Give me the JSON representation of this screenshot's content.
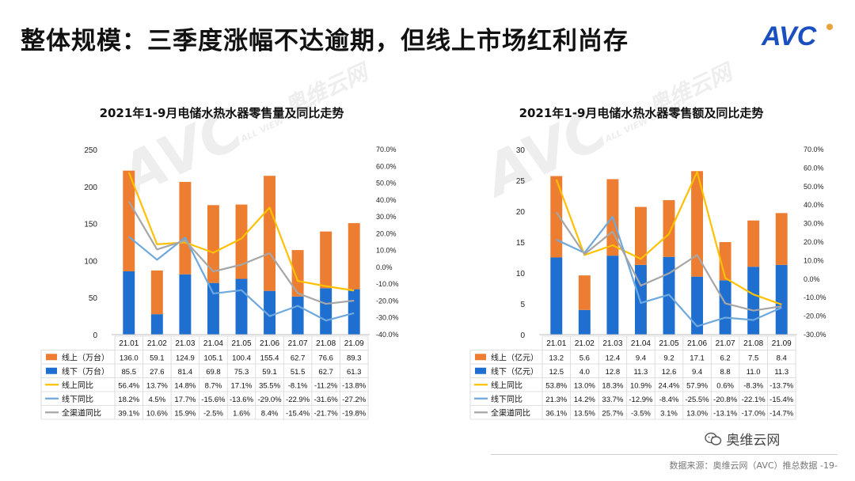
{
  "page": {
    "title": "整体规模：三季度涨幅不达逾期，但线上市场红利尚存",
    "logo_text": "AVC",
    "watermark": "AVC",
    "watermark_sub": "ALL VIEW CLOUD",
    "watermark_cn": "奥维云网",
    "wechat_label": "奥维云网",
    "footer": "数据来源：奥维云网（AVC）推总数据 -19-"
  },
  "colors": {
    "online": "#ED7D31",
    "offline": "#1F6FD1",
    "online_yoy": "#FFC000",
    "offline_yoy": "#6FA8DC",
    "total_yoy": "#A6A6A6",
    "logo": "#1A4FBF",
    "logo_accent": "#E8A33A"
  },
  "chart_data": [
    {
      "type": "bar",
      "title": "2021年1-9月电储水热水器零售量及同比走势",
      "categories": [
        "21.01",
        "21.02",
        "21.03",
        "21.04",
        "21.05",
        "21.06",
        "21.07",
        "21.08",
        "21.09"
      ],
      "ylim": [
        0,
        250
      ],
      "yticks": [
        "0",
        "50",
        "100",
        "150",
        "200",
        "250"
      ],
      "y2lim": [
        -40,
        70
      ],
      "y2ticks": [
        "-40.0%",
        "-30.0%",
        "-20.0%",
        "-10.0%",
        "0.0%",
        "10.0%",
        "20.0%",
        "30.0%",
        "40.0%",
        "50.0%",
        "60.0%",
        "70.0%"
      ],
      "stack_order": [
        "线下（万台）",
        "线上（万台）"
      ],
      "series": [
        {
          "name": "线上（万台）",
          "kind": "bar",
          "color_key": "online",
          "values": [
            136.0,
            59.1,
            124.9,
            105.1,
            100.4,
            155.4,
            62.7,
            76.6,
            89.3
          ],
          "labels": [
            "136.0",
            "59.1",
            "124.9",
            "105.1",
            "100.4",
            "155.4",
            "62.7",
            "76.6",
            "89.3"
          ]
        },
        {
          "name": "线下（万台）",
          "kind": "bar",
          "color_key": "offline",
          "values": [
            85.5,
            27.6,
            81.4,
            69.8,
            75.3,
            59.1,
            51.5,
            62.7,
            61.3
          ],
          "labels": [
            "85.5",
            "27.6",
            "81.4",
            "69.8",
            "75.3",
            "59.1",
            "51.5",
            "62.7",
            "61.3"
          ]
        },
        {
          "name": "线上同比",
          "kind": "line",
          "color_key": "online_yoy",
          "values": [
            56.4,
            13.7,
            14.8,
            8.7,
            17.1,
            35.5,
            -8.1,
            -11.2,
            -13.8
          ],
          "labels": [
            "56.4%",
            "13.7%",
            "14.8%",
            "8.7%",
            "17.1%",
            "35.5%",
            "-8.1%",
            "-11.2%",
            "-13.8%"
          ]
        },
        {
          "name": "线下同比",
          "kind": "line",
          "color_key": "offline_yoy",
          "values": [
            18.2,
            4.5,
            17.7,
            -15.6,
            -13.6,
            -29.0,
            -22.9,
            -31.6,
            -27.2
          ],
          "labels": [
            "18.2%",
            "4.5%",
            "17.7%",
            "-15.6%",
            "-13.6%",
            "-29.0%",
            "-22.9%",
            "-31.6%",
            "-27.2%"
          ]
        },
        {
          "name": "全渠道同比",
          "kind": "line",
          "color_key": "total_yoy",
          "values": [
            39.1,
            10.6,
            15.9,
            -2.5,
            1.6,
            8.4,
            -15.4,
            -21.7,
            -19.8
          ],
          "labels": [
            "39.1%",
            "10.6%",
            "15.9%",
            "-2.5%",
            "1.6%",
            "8.4%",
            "-15.4%",
            "-21.7%",
            "-19.8%"
          ]
        }
      ]
    },
    {
      "type": "bar",
      "title": "2021年1-9月电储水热水器零售额及同比走势",
      "categories": [
        "21.01",
        "21.02",
        "21.03",
        "21.04",
        "21.05",
        "21.06",
        "21.07",
        "21.08",
        "21.09"
      ],
      "ylim": [
        0,
        30
      ],
      "yticks": [
        "0",
        "5",
        "10",
        "15",
        "20",
        "25",
        "30"
      ],
      "y2lim": [
        -30,
        70
      ],
      "y2ticks": [
        "-30.0%",
        "-20.0%",
        "-10.0%",
        "0.0%",
        "10.0%",
        "20.0%",
        "30.0%",
        "40.0%",
        "50.0%",
        "60.0%",
        "70.0%"
      ],
      "stack_order": [
        "线下（亿元）",
        "线上（亿元）"
      ],
      "series": [
        {
          "name": "线上（亿元）",
          "kind": "bar",
          "color_key": "online",
          "values": [
            13.2,
            5.6,
            12.4,
            9.4,
            9.2,
            17.1,
            6.2,
            7.5,
            8.4
          ],
          "labels": [
            "13.2",
            "5.6",
            "12.4",
            "9.4",
            "9.2",
            "17.1",
            "6.2",
            "7.5",
            "8.4"
          ]
        },
        {
          "name": "线下（亿元）",
          "kind": "bar",
          "color_key": "offline",
          "values": [
            12.5,
            4.0,
            12.8,
            11.3,
            12.6,
            9.4,
            8.8,
            11.0,
            11.3
          ],
          "labels": [
            "12.5",
            "4.0",
            "12.8",
            "11.3",
            "12.6",
            "9.4",
            "8.8",
            "11.0",
            "11.3"
          ]
        },
        {
          "name": "线上同比",
          "kind": "line",
          "color_key": "online_yoy",
          "values": [
            53.8,
            13.0,
            18.3,
            10.9,
            24.4,
            57.9,
            0.6,
            -8.3,
            -13.7
          ],
          "labels": [
            "53.8%",
            "13.0%",
            "18.3%",
            "10.9%",
            "24.4%",
            "57.9%",
            "0.6%",
            "-8.3%",
            "-13.7%"
          ]
        },
        {
          "name": "线下同比",
          "kind": "line",
          "color_key": "offline_yoy",
          "values": [
            21.3,
            14.2,
            33.7,
            -12.9,
            -8.4,
            -25.5,
            -20.8,
            -22.1,
            -15.4
          ],
          "labels": [
            "21.3%",
            "14.2%",
            "33.7%",
            "-12.9%",
            "-8.4%",
            "-25.5%",
            "-20.8%",
            "-22.1%",
            "-15.4%"
          ]
        },
        {
          "name": "全渠道同比",
          "kind": "line",
          "color_key": "total_yoy",
          "values": [
            36.1,
            13.5,
            25.7,
            -3.5,
            3.1,
            13.0,
            -13.1,
            -17.0,
            -14.7
          ],
          "labels": [
            "36.1%",
            "13.5%",
            "25.7%",
            "-3.5%",
            "3.1%",
            "13.0%",
            "-13.1%",
            "-17.0%",
            "-14.7%"
          ]
        }
      ]
    }
  ]
}
